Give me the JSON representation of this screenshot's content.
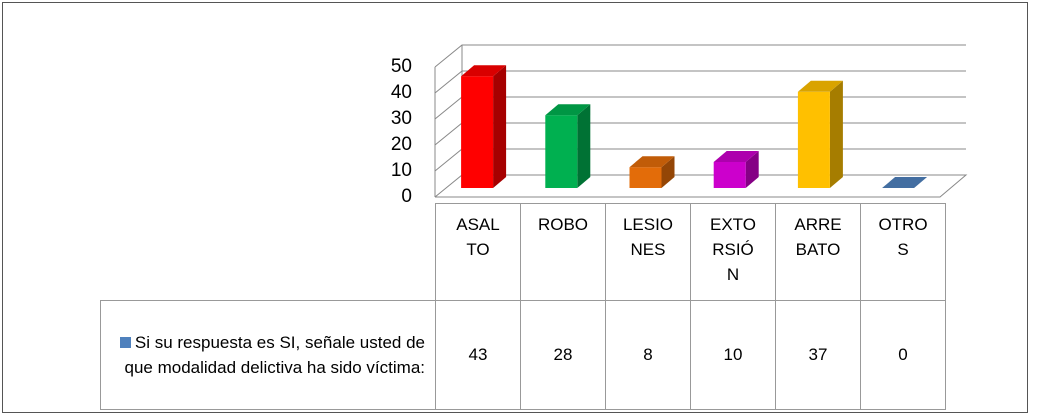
{
  "chart_data": {
    "type": "bar3d",
    "categories": [
      "ASALTO",
      "ROBO",
      "LESIONES",
      "EXTORSIÓN",
      "ARREBATO",
      "OTROS"
    ],
    "series": [
      {
        "name": "Si su respuesta es SI, señale usted de que modalidad delictiva ha sido víctima:",
        "color": "#4f81bd",
        "values": [
          43,
          28,
          8,
          10,
          37,
          0
        ],
        "colors": [
          "#ff0000",
          "#00b050",
          "#e36c09",
          "#cc00cc",
          "#ffc000",
          "#4f81bd"
        ]
      }
    ],
    "ylim": [
      0,
      50
    ],
    "yticks": [
      0,
      10,
      20,
      30,
      40,
      50
    ],
    "grid": true,
    "data_table": true
  }
}
